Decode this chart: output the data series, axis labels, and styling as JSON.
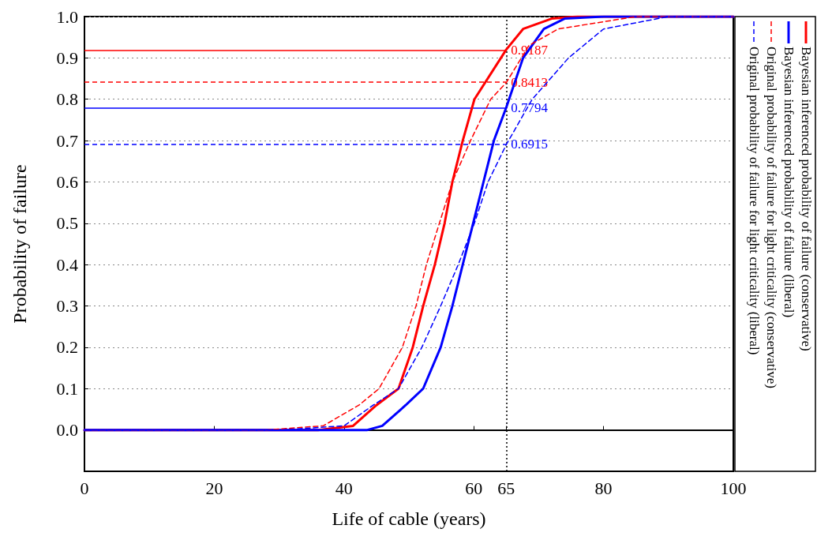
{
  "chart_data": {
    "type": "line",
    "xlabel": "Life of cable (years)",
    "ylabel": "Probability of failure",
    "xlim": [
      0,
      100
    ],
    "xticks": [
      0,
      20,
      40,
      60,
      65,
      80,
      100
    ],
    "ylim": [
      -0.1,
      1
    ],
    "yticks": [
      {
        "value": 0,
        "label": "0.0"
      },
      {
        "value": 0.1,
        "label": "0.1"
      },
      {
        "value": 0.2,
        "label": "0.2"
      },
      {
        "value": 0.3,
        "label": "0.3"
      },
      {
        "value": 0.4,
        "label": "0.4"
      },
      {
        "value": 0.5,
        "label": "0.5"
      },
      {
        "value": 0.6,
        "label": "0.6"
      },
      {
        "value": 0.7,
        "label": "0.7"
      },
      {
        "value": 0.8,
        "label": "0.8"
      },
      {
        "value": 0.9,
        "label": "0.9"
      },
      {
        "value": 1,
        "label": "1.0"
      }
    ],
    "grid": "y",
    "legend": "right",
    "marker": "none",
    "series": [
      {
        "name": "Bayesian inferenced probability of failure (conservative)",
        "color": "#ff0000",
        "line_style": "solid",
        "x": [
          0,
          36,
          41.4,
          45,
          48.4,
          50.6,
          52.2,
          54,
          55.5,
          56.7,
          58.3,
          60.1,
          65,
          67.6,
          72,
          76,
          100
        ],
        "values": [
          0,
          0,
          0.01,
          0.06,
          0.1,
          0.2,
          0.3,
          0.4,
          0.5,
          0.6,
          0.7,
          0.8,
          0.92,
          0.97,
          0.995,
          1,
          1
        ]
      },
      {
        "name": "Bayesian inferenced probability of failure (liberal)",
        "color": "#0000ff",
        "line_style": "solid",
        "x": [
          0,
          43.6,
          45.9,
          49.5,
          52.2,
          54.9,
          56.7,
          58.3,
          59.9,
          61.5,
          63.1,
          65,
          67.6,
          70.8,
          74,
          80,
          100
        ],
        "values": [
          0,
          0,
          0.01,
          0.06,
          0.1,
          0.2,
          0.3,
          0.4,
          0.5,
          0.6,
          0.7,
          0.78,
          0.9,
          0.97,
          0.995,
          1,
          1
        ]
      },
      {
        "name": "Original probability of failure for light criticality (conservative)",
        "color": "#ff0000",
        "line_style": "dashed",
        "x": [
          0,
          28,
          36.8,
          42.3,
          45.4,
          49,
          51.1,
          52.7,
          54.7,
          56.7,
          59.5,
          62.6,
          65,
          68.5,
          73,
          85,
          100
        ],
        "values": [
          0,
          0,
          0.01,
          0.06,
          0.1,
          0.2,
          0.3,
          0.4,
          0.5,
          0.6,
          0.7,
          0.8,
          0.84,
          0.93,
          0.97,
          1,
          1
        ]
      },
      {
        "name": "Original probability of failure for light criticality (liberal)",
        "color": "#0000ff",
        "line_style": "dashed",
        "x": [
          0,
          30,
          40,
          44.5,
          48.4,
          52,
          54.9,
          57.6,
          60.1,
          62.2,
          65,
          69,
          74.6,
          80,
          90,
          100
        ],
        "values": [
          0,
          0,
          0.01,
          0.06,
          0.1,
          0.2,
          0.3,
          0.4,
          0.5,
          0.6,
          0.69,
          0.8,
          0.9,
          0.97,
          1,
          1
        ]
      }
    ],
    "ref_lines": [
      {
        "axis": "x",
        "value": 65,
        "color": "#000000",
        "line_style": "dotted"
      },
      {
        "axis": "y",
        "value": 0.9187,
        "label": "0.9187",
        "color": "#ff0000",
        "line_style": "solid"
      },
      {
        "axis": "y",
        "value": 0.8413,
        "label": "0.8413",
        "color": "#ff0000",
        "line_style": "dashed"
      },
      {
        "axis": "y",
        "value": 0.7794,
        "label": "0.7794",
        "color": "#0000ff",
        "line_style": "solid"
      },
      {
        "axis": "y",
        "value": 0.6915,
        "label": "0.6915",
        "color": "#0000ff",
        "line_style": "dashed"
      }
    ]
  }
}
